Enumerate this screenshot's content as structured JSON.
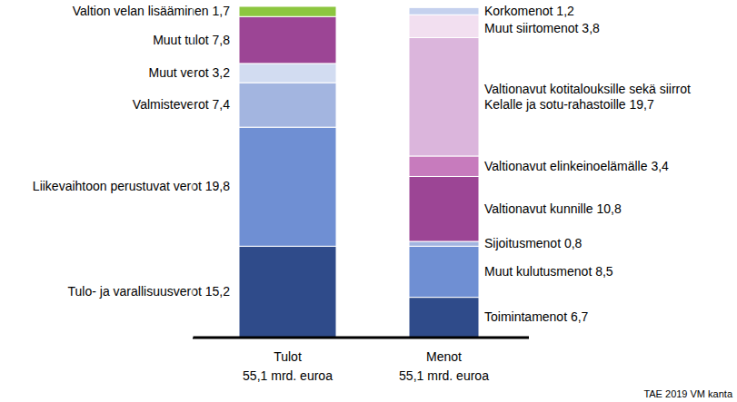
{
  "chart_data": {
    "type": "bar",
    "stacked": true,
    "data_labels": true,
    "tick_labels": "x",
    "categories": [
      "Tulot",
      "Menot"
    ],
    "totals": [
      55.1,
      55.1
    ],
    "total_labels": [
      "55,1 mrd. euroa",
      "55,1 mrd. euroa"
    ],
    "ylim": [
      0,
      55.1
    ],
    "source": "TAE 2019 VM kanta",
    "series": [
      {
        "name": "Tulo- ja varallisuusverot",
        "color": "#2f4b8a",
        "values": [
          15.2,
          null
        ],
        "value_labels": [
          "15,2",
          null
        ]
      },
      {
        "name": "Liikevaihtoon perustuvat verot",
        "color": "#6f8fd3",
        "values": [
          19.8,
          null
        ],
        "value_labels": [
          "19,8",
          null
        ]
      },
      {
        "name": "Valmisteverot",
        "color": "#a3b5e0",
        "values": [
          7.4,
          null
        ],
        "value_labels": [
          "7,4",
          null
        ]
      },
      {
        "name": "Muut verot",
        "color": "#d2dcf1",
        "values": [
          3.2,
          null
        ],
        "value_labels": [
          "3,2",
          null
        ]
      },
      {
        "name": "Muut tulot",
        "color": "#9c4595",
        "values": [
          7.8,
          null
        ],
        "value_labels": [
          "7,8",
          null
        ]
      },
      {
        "name": "Valtion velan lisääminen",
        "color": "#8cc63f",
        "values": [
          1.7,
          null
        ],
        "value_labels": [
          "1,7",
          null
        ]
      },
      {
        "name": "Toimintamenot",
        "color": "#2f4b8a",
        "values": [
          null,
          6.7
        ],
        "value_labels": [
          null,
          "6,7"
        ]
      },
      {
        "name": "Muut kulutusmenot",
        "color": "#6f8fd3",
        "values": [
          null,
          8.5
        ],
        "value_labels": [
          null,
          "8,5"
        ]
      },
      {
        "name": "Sijoitusmenot",
        "color": "#a3b5e0",
        "values": [
          null,
          0.8
        ],
        "value_labels": [
          null,
          "0,8"
        ]
      },
      {
        "name": "Valtionavut kunnille",
        "color": "#9c4595",
        "values": [
          null,
          10.8
        ],
        "value_labels": [
          null,
          "10,8"
        ]
      },
      {
        "name": "Valtionavut elinkeinoelämälle",
        "color": "#c77bbd",
        "values": [
          null,
          3.4
        ],
        "value_labels": [
          null,
          "3,4"
        ]
      },
      {
        "name": "Valtionavut kotitalouksille sekä siirrot Kelalle ja sotu-rahastoille",
        "color": "#dbb5dc",
        "values": [
          null,
          19.7
        ],
        "value_labels": [
          null,
          "19,7"
        ]
      },
      {
        "name": "Muut siirtomenot",
        "color": "#f2dff0",
        "values": [
          null,
          3.8
        ],
        "value_labels": [
          null,
          "3,8"
        ]
      },
      {
        "name": "Korkomenot",
        "color": "#c5d1ee",
        "values": [
          null,
          1.2
        ],
        "value_labels": [
          null,
          "1,2"
        ]
      }
    ]
  }
}
